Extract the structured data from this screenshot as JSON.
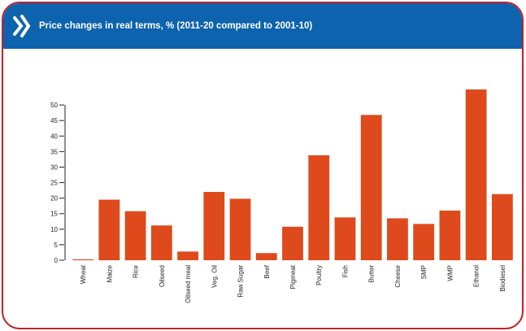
{
  "header": {
    "title": "Price changes in real terms, % (2011-20 compared to 2001-10)",
    "logo_icon": "oecd-chevron-icon"
  },
  "colors": {
    "header_bg": "#0d63ad",
    "frame_border": "#c41f2a",
    "bar_fill": "#de4a1c",
    "axis": "#222222"
  },
  "chart_data": {
    "type": "bar",
    "title": "Price changes in real terms, % (2011-20 compared to 2001-10)",
    "categories": [
      "Wheat",
      "Maize",
      "Rice",
      "Oilseed",
      "Oilseed meal",
      "Veg. Oil",
      "Raw Sugar",
      "Beef",
      "Pigmeat",
      "Poultry",
      "Fish",
      "Butter",
      "Cheese",
      "SMP",
      "WMP",
      "Ethanol",
      "Biodiesel"
    ],
    "values": [
      0.3,
      19.5,
      15.8,
      11.2,
      2.8,
      22.0,
      19.8,
      2.3,
      10.8,
      33.8,
      13.8,
      46.8,
      13.5,
      11.7,
      16.0,
      55.0,
      21.3
    ],
    "yticks": [
      0,
      5,
      10,
      15,
      20,
      25,
      30,
      35,
      40,
      45,
      50
    ],
    "ylim": [
      0,
      55
    ],
    "xlabel": "",
    "ylabel": "",
    "grid": false
  }
}
